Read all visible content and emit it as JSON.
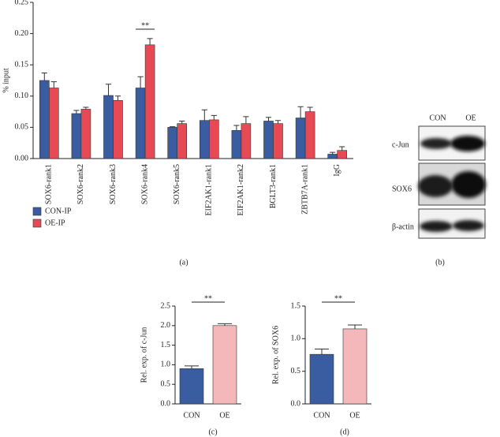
{
  "chart_data": [
    {
      "type": "bar",
      "ylabel": "% input",
      "categories": [
        "SOX6-rank1",
        "SOX6-rank2",
        "SOX6-rank3",
        "SOX6-rank4",
        "SOX6-rank5",
        "EIF2AK1-rank1",
        "EIF2AK1-rank2",
        "BGLT3-rank1",
        "ZBTB7A-rank1",
        "IgG"
      ],
      "series": [
        {
          "name": "CON-IP",
          "color": "#3a5ca0",
          "values": [
            0.125,
            0.072,
            0.101,
            0.113,
            0.05,
            0.061,
            0.045,
            0.06,
            0.065,
            0.007
          ],
          "errors": [
            0.012,
            0.005,
            0.018,
            0.018,
            0.001,
            0.017,
            0.008,
            0.006,
            0.018,
            0.003
          ]
        },
        {
          "name": "OE-IP",
          "color": "#e84a55",
          "values": [
            0.113,
            0.079,
            0.093,
            0.182,
            0.056,
            0.062,
            0.056,
            0.056,
            0.075,
            0.013
          ],
          "errors": [
            0.01,
            0.003,
            0.007,
            0.01,
            0.004,
            0.007,
            0.011,
            0.005,
            0.007,
            0.006
          ]
        }
      ],
      "ylim": [
        0,
        0.25
      ],
      "yticks": [
        {
          "value": 0,
          "label": "0.00"
        },
        0.05,
        {
          "value": 0.1,
          "label": "0.10"
        },
        0.15,
        {
          "value": 0.2,
          "label": "0.20"
        },
        0.25
      ],
      "annotation": "**",
      "panel": "(a)",
      "legend": "bottom-left"
    },
    {
      "type": "bar",
      "ylabel": "Rel. exp. of c-Jun",
      "categories": [
        "CON",
        "OE"
      ],
      "series": [
        {
          "colors": [
            "#3a5ca0",
            "#f4b8bb"
          ],
          "values": [
            0.9,
            2.0
          ],
          "errors": [
            0.07,
            0.05
          ]
        }
      ],
      "ylim": [
        0,
        2.5
      ],
      "yticks": [
        {
          "value": 0,
          "label": "0.0"
        },
        0.5,
        {
          "value": 1,
          "label": "1.0"
        },
        1.5,
        {
          "value": 2,
          "label": "2.0"
        },
        2.5
      ],
      "annotation": "**",
      "panel": "(c)"
    },
    {
      "type": "bar",
      "ylabel": "Rel. exp. of SOX6",
      "categories": [
        "CON",
        "OE"
      ],
      "series": [
        {
          "colors": [
            "#3a5ca0",
            "#f4b8bb"
          ],
          "values": [
            0.76,
            1.15
          ],
          "errors": [
            0.08,
            0.06
          ]
        }
      ],
      "ylim": [
        0,
        1.5
      ],
      "yticks": [
        {
          "value": 0,
          "label": "0.0"
        },
        0.5,
        {
          "value": 1,
          "label": "1.0"
        },
        1.5
      ],
      "annotation": "**",
      "panel": "(d)"
    }
  ],
  "blot": {
    "columns": [
      "CON",
      "OE"
    ],
    "rows": [
      "c-Jun",
      "SOX6",
      "β-actin"
    ],
    "panel": "(b)"
  }
}
